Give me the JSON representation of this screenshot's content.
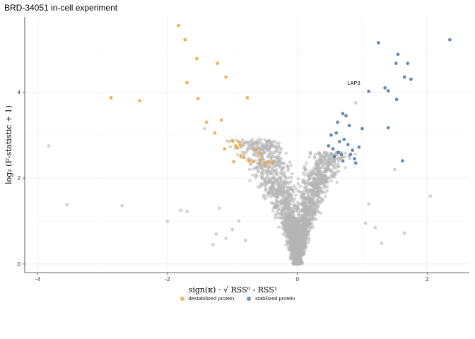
{
  "chart_data": {
    "type": "scatter",
    "title": "BRD-34051 in-cell experiment",
    "xlabel": "sign(κ) · √ RSS⁰ - RSS¹",
    "ylabel": "log₂ (F-statistic + 1)",
    "xlim": [
      -4.2,
      2.65
    ],
    "ylim": [
      -0.2,
      5.75
    ],
    "x_ticks": [
      -4,
      -2,
      0,
      2
    ],
    "y_ticks": [
      0,
      2,
      4
    ],
    "grid": true,
    "legend_position": "bottom",
    "colors": {
      "destabilized": "#f0a33a",
      "stabilized": "#4a78a8",
      "background": "#b4b4b4"
    },
    "series": [
      {
        "name": "destabilized protein",
        "key": "destabilized",
        "x": [
          -1.83,
          -1.73,
          -1.55,
          -1.1,
          -1.7,
          -2.87,
          -2.43,
          -1.53,
          -1.23,
          -0.77,
          -1.17,
          -1.27,
          -1.4,
          -1.12,
          -1.0,
          -0.9,
          -0.88,
          -0.92,
          -0.95,
          -0.87,
          -0.82,
          -0.74,
          -0.63,
          -0.56,
          -0.68,
          -0.44,
          -0.5,
          -0.38,
          -0.57,
          -0.98
        ],
        "y": [
          5.55,
          5.22,
          4.78,
          4.35,
          4.22,
          3.87,
          3.8,
          3.85,
          4.67,
          3.87,
          3.35,
          3.05,
          3.3,
          2.68,
          2.87,
          2.84,
          2.77,
          2.7,
          2.75,
          2.52,
          2.48,
          2.4,
          2.67,
          2.57,
          2.38,
          2.38,
          2.3,
          2.34,
          2.42,
          2.38
        ]
      },
      {
        "name": "stabilized protein",
        "key": "stabilized",
        "x": [
          2.35,
          1.25,
          1.55,
          1.7,
          1.52,
          1.65,
          1.75,
          1.35,
          1.4,
          1.1,
          1.53,
          1.4,
          1.0,
          1.62,
          0.7,
          0.75,
          0.62,
          0.8,
          0.52,
          0.6,
          0.72,
          0.65,
          0.78,
          0.95,
          0.85,
          0.48,
          0.55,
          0.63,
          0.68,
          0.57,
          0.82,
          0.9,
          0.88,
          0.7
        ],
        "y": [
          5.22,
          5.15,
          4.88,
          4.67,
          4.67,
          4.35,
          4.3,
          4.1,
          4.03,
          4.02,
          3.83,
          3.17,
          3.15,
          2.4,
          3.5,
          3.45,
          3.3,
          3.22,
          3.0,
          3.05,
          2.9,
          2.85,
          2.78,
          2.72,
          2.65,
          2.75,
          2.68,
          2.6,
          2.55,
          2.5,
          2.55,
          2.35,
          2.45,
          2.4
        ]
      },
      {
        "name": "",
        "key": "background",
        "x": [
          -3.83,
          -3.55,
          -2.7,
          -2.0,
          -1.3,
          -1.1,
          -1.8,
          -1.7,
          -1.43,
          -0.9,
          -1.0,
          -0.8,
          -1.25,
          -1.2,
          0.9,
          1.5,
          2.05,
          1.65,
          1.3,
          1.05,
          1.1,
          1.2
        ],
        "y": [
          2.75,
          1.38,
          1.36,
          0.99,
          0.45,
          0.6,
          1.25,
          1.22,
          3.15,
          1.0,
          0.8,
          0.55,
          0.7,
          1.3,
          3.75,
          2.2,
          1.58,
          0.72,
          0.48,
          0.95,
          1.4,
          0.85
        ]
      }
    ],
    "annotations": [
      {
        "text": "LAP3",
        "x": 0.97,
        "y": 4.17
      }
    ]
  }
}
